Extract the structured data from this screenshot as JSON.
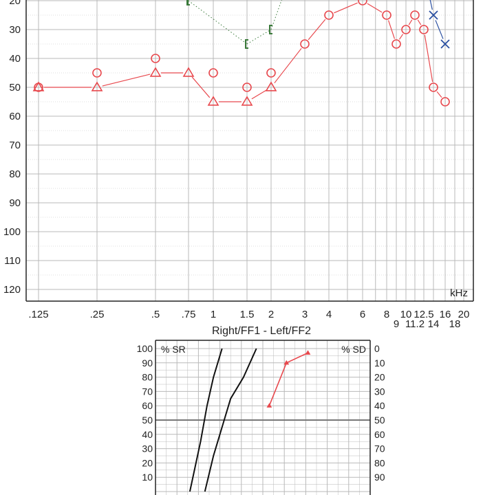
{
  "chart_data": [
    {
      "type": "line",
      "name": "audiogram",
      "x_tick_labels": [
        ".125",
        ".25",
        ".5",
        ".75",
        "1",
        "1.5",
        "2",
        "3",
        "4",
        "6",
        "8",
        "10",
        "12.5",
        "16",
        "20"
      ],
      "x_tick_labels_lower": [
        "9",
        "11.2",
        "14",
        "18"
      ],
      "x_unit": "kHz",
      "xlabel": "Right/FF1 - Left/FF2",
      "y_ticks": [
        20,
        30,
        40,
        50,
        60,
        70,
        80,
        90,
        100,
        110,
        120
      ],
      "ylim": [
        17,
        125
      ],
      "grid": true,
      "colors": {
        "right": "#e8484d",
        "left": "#2a4fa0",
        "bone": "#3a7a3a",
        "grid": "#b9b9b9",
        "frame": "#222222"
      },
      "series": [
        {
          "marker": "circle",
          "color": "#e8484d",
          "points": [
            {
              "x": 0.125,
              "y": 50
            },
            {
              "x": 0.25,
              "y": 45
            },
            {
              "x": 0.5,
              "y": 40
            },
            {
              "x": 1,
              "y": 45
            },
            {
              "x": 1.5,
              "y": 50
            },
            {
              "x": 2,
              "y": 45
            }
          ],
          "connected": false
        },
        {
          "marker": "circle",
          "color": "#e8484d",
          "points": [
            {
              "x": 3,
              "y": 35
            },
            {
              "x": 4,
              "y": 25
            },
            {
              "x": 6,
              "y": 20
            },
            {
              "x": 8,
              "y": 25
            },
            {
              "x": 9,
              "y": 35
            },
            {
              "x": 10,
              "y": 30
            },
            {
              "x": 11.2,
              "y": 25
            },
            {
              "x": 12.5,
              "y": 30
            },
            {
              "x": 14,
              "y": 50
            },
            {
              "x": 16,
              "y": 55
            }
          ],
          "connected": true
        },
        {
          "marker": "triangle",
          "color": "#e8484d",
          "points": [
            {
              "x": 0.125,
              "y": 50
            },
            {
              "x": 0.25,
              "y": 50
            },
            {
              "x": 0.5,
              "y": 45
            },
            {
              "x": 0.75,
              "y": 45
            },
            {
              "x": 1,
              "y": 55
            },
            {
              "x": 1.5,
              "y": 55
            },
            {
              "x": 2,
              "y": 50
            }
          ],
          "connected": true,
          "continues_to": {
            "x": 3,
            "y": 35
          }
        },
        {
          "marker": "x",
          "color": "#2a4fa0",
          "points": [
            {
              "x": 13.2,
              "y": 17
            },
            {
              "x": 14,
              "y": 25
            },
            {
              "x": 16,
              "y": 35
            }
          ],
          "connected": true
        },
        {
          "marker": "bracket-left",
          "color": "#3a7a3a",
          "points": [
            {
              "x": 0.75,
              "y": 20
            },
            {
              "x": 1.5,
              "y": 35
            },
            {
              "x": 2,
              "y": 30
            },
            {
              "x": 2.35,
              "y": 17
            }
          ],
          "connected": "dotted",
          "vertical_line_at": 0.75
        }
      ]
    },
    {
      "type": "line",
      "name": "speech",
      "left_label": "% SR",
      "right_label": "% SD",
      "left_ticks": [
        100,
        90,
        80,
        70,
        60,
        50,
        40,
        30,
        20,
        10
      ],
      "right_ticks": [
        0,
        10,
        20,
        30,
        40,
        50,
        60,
        70,
        80,
        90
      ],
      "ylim": [
        0,
        100
      ],
      "grid": true,
      "reference_curves": [
        {
          "points": [
            [
              0.16,
              0
            ],
            [
              0.21,
              35
            ],
            [
              0.24,
              60
            ],
            [
              0.27,
              80
            ],
            [
              0.31,
              100
            ]
          ],
          "color": "#111111"
        },
        {
          "points": [
            [
              0.23,
              0
            ],
            [
              0.27,
              25
            ],
            [
              0.31,
              45
            ],
            [
              0.35,
              65
            ],
            [
              0.41,
              80
            ],
            [
              0.47,
              100
            ]
          ],
          "color": "#111111"
        }
      ],
      "series": [
        {
          "marker": "triangle",
          "color": "#e8484d",
          "points": [
            [
              0.53,
              60
            ],
            [
              0.61,
              90
            ],
            [
              0.71,
              97
            ]
          ]
        }
      ]
    }
  ]
}
